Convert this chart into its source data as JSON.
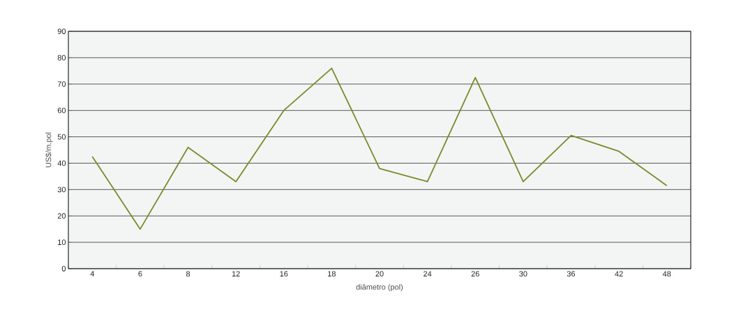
{
  "chart_data": {
    "type": "line",
    "xlabel": "diâmetro (pol)",
    "ylabel": "US$/m.pol",
    "categories": [
      "4",
      "6",
      "8",
      "12",
      "16",
      "18",
      "20",
      "24",
      "26",
      "30",
      "36",
      "42",
      "48"
    ],
    "series": [
      {
        "color": "#7a8a2a",
        "values": [
          42.5,
          15,
          46,
          33,
          60,
          76,
          38,
          33,
          72.5,
          33,
          50.5,
          44.5,
          31.5
        ]
      }
    ],
    "ylim": [
      0,
      90
    ],
    "yticks": [
      0,
      10,
      20,
      30,
      40,
      50,
      60,
      70,
      80,
      90
    ],
    "grid": "y",
    "marker": "none",
    "line_style": "solid"
  }
}
